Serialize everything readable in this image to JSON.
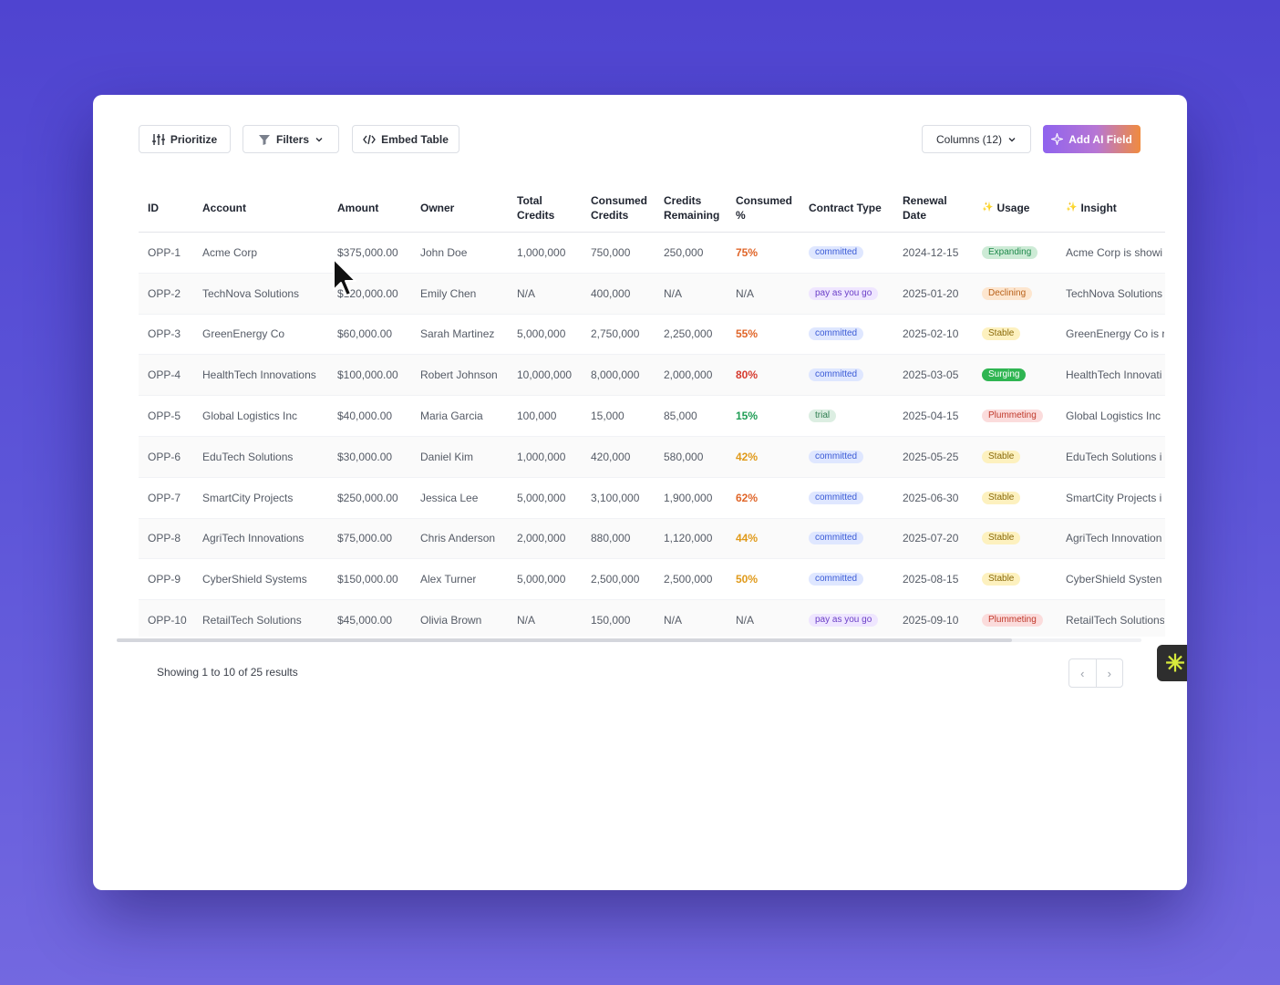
{
  "toolbar": {
    "prioritize_label": "Prioritize",
    "filters_label": "Filters",
    "embed_label": "Embed Table",
    "columns_label": "Columns (12)",
    "add_ai_label": "Add AI Field"
  },
  "table": {
    "headers": {
      "id": "ID",
      "account": "Account",
      "amount": "Amount",
      "owner": "Owner",
      "total_credits": "Total\nCredits",
      "consumed_credits": "Consumed\nCredits",
      "credits_remaining": "Credits\nRemaining",
      "consumed_pct": "Consumed\n%",
      "contract_type": "Contract Type",
      "renewal_date": "Renewal\nDate",
      "usage": "Usage",
      "insight": "Insight"
    },
    "rows": [
      {
        "id": "OPP-1",
        "account": "Acme Corp",
        "amount": "$375,000.00",
        "owner": "John Doe",
        "total": "1,000,000",
        "consumed": "750,000",
        "remaining": "250,000",
        "pct": "75%",
        "pct_color": "#e0662a",
        "contract": "committed",
        "renewal": "2024-12-15",
        "usage": "Expanding",
        "insight": "Acme Corp is showi"
      },
      {
        "id": "OPP-2",
        "account": "TechNova Solutions",
        "amount": "$120,000.00",
        "owner": "Emily Chen",
        "total": "N/A",
        "consumed": "400,000",
        "remaining": "N/A",
        "pct": "N/A",
        "pct_color": "#555b66",
        "contract": "pay as you go",
        "renewal": "2025-01-20",
        "usage": "Declining",
        "insight": "TechNova Solutions"
      },
      {
        "id": "OPP-3",
        "account": "GreenEnergy Co",
        "amount": "$60,000.00",
        "owner": "Sarah Martinez",
        "total": "5,000,000",
        "consumed": "2,750,000",
        "remaining": "2,250,000",
        "pct": "55%",
        "pct_color": "#e0662a",
        "contract": "committed",
        "renewal": "2025-02-10",
        "usage": "Stable",
        "insight": "GreenEnergy Co is r"
      },
      {
        "id": "OPP-4",
        "account": "HealthTech Innovations",
        "amount": "$100,000.00",
        "owner": "Robert Johnson",
        "total": "10,000,000",
        "consumed": "8,000,000",
        "remaining": "2,000,000",
        "pct": "80%",
        "pct_color": "#d63b2f",
        "contract": "committed",
        "renewal": "2025-03-05",
        "usage": "Surging",
        "insight": "HealthTech Innovati"
      },
      {
        "id": "OPP-5",
        "account": "Global Logistics Inc",
        "amount": "$40,000.00",
        "owner": "Maria Garcia",
        "total": "100,000",
        "consumed": "15,000",
        "remaining": "85,000",
        "pct": "15%",
        "pct_color": "#1f9d55",
        "contract": "trial",
        "renewal": "2025-04-15",
        "usage": "Plummeting",
        "insight": "Global Logistics Inc"
      },
      {
        "id": "OPP-6",
        "account": "EduTech Solutions",
        "amount": "$30,000.00",
        "owner": "Daniel Kim",
        "total": "1,000,000",
        "consumed": "420,000",
        "remaining": "580,000",
        "pct": "42%",
        "pct_color": "#e09a1a",
        "contract": "committed",
        "renewal": "2025-05-25",
        "usage": "Stable",
        "insight": "EduTech Solutions i"
      },
      {
        "id": "OPP-7",
        "account": "SmartCity Projects",
        "amount": "$250,000.00",
        "owner": "Jessica Lee",
        "total": "5,000,000",
        "consumed": "3,100,000",
        "remaining": "1,900,000",
        "pct": "62%",
        "pct_color": "#e0662a",
        "contract": "committed",
        "renewal": "2025-06-30",
        "usage": "Stable",
        "insight": "SmartCity Projects i"
      },
      {
        "id": "OPP-8",
        "account": "AgriTech Innovations",
        "amount": "$75,000.00",
        "owner": "Chris Anderson",
        "total": "2,000,000",
        "consumed": "880,000",
        "remaining": "1,120,000",
        "pct": "44%",
        "pct_color": "#e09a1a",
        "contract": "committed",
        "renewal": "2025-07-20",
        "usage": "Stable",
        "insight": "AgriTech Innovation"
      },
      {
        "id": "OPP-9",
        "account": "CyberShield Systems",
        "amount": "$150,000.00",
        "owner": "Alex Turner",
        "total": "5,000,000",
        "consumed": "2,500,000",
        "remaining": "2,500,000",
        "pct": "50%",
        "pct_color": "#e09a1a",
        "contract": "committed",
        "renewal": "2025-08-15",
        "usage": "Stable",
        "insight": "CyberShield Systen"
      },
      {
        "id": "OPP-10",
        "account": "RetailTech Solutions",
        "amount": "$45,000.00",
        "owner": "Olivia Brown",
        "total": "N/A",
        "consumed": "150,000",
        "remaining": "N/A",
        "pct": "N/A",
        "pct_color": "#555b66",
        "contract": "pay as you go",
        "renewal": "2025-09-10",
        "usage": "Plummeting",
        "insight": "RetailTech Solutions"
      }
    ]
  },
  "badge_styles": {
    "committed": {
      "bg": "#dfe7ff",
      "fg": "#3b5bd6"
    },
    "pay as you go": {
      "bg": "#efe6ff",
      "fg": "#6b3fc7"
    },
    "trial": {
      "bg": "#dceee2",
      "fg": "#2e7d4f"
    },
    "Expanding": {
      "bg": "#cdebd6",
      "fg": "#1f8a4c"
    },
    "Declining": {
      "bg": "#fde6cf",
      "fg": "#b8611a"
    },
    "Stable": {
      "bg": "#fdf1bf",
      "fg": "#8a6a0a"
    },
    "Surging": {
      "bg": "#2fb552",
      "fg": "#ffffff"
    },
    "Plummeting": {
      "bg": "#fbdcdc",
      "fg": "#c0392b"
    }
  },
  "footer": {
    "showing_text": "Showing 1 to 10 of 25 results",
    "prev_icon": "‹",
    "next_icon": "›"
  },
  "widget_icon": "✳"
}
